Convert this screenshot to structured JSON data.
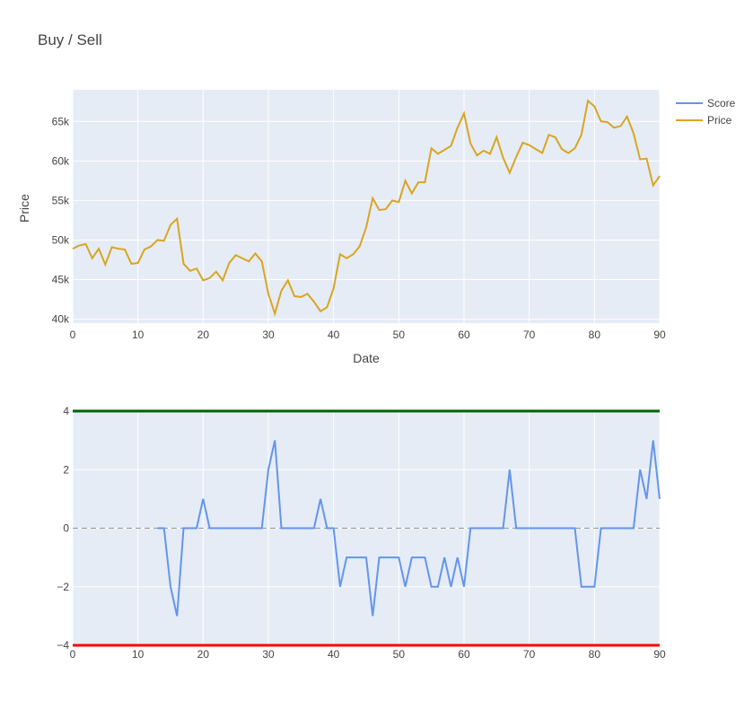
{
  "chart_data": {
    "type": "line",
    "title": "Buy / Sell",
    "legend": [
      "Score",
      "Price"
    ],
    "colors": {
      "score": "#6495ED",
      "price": "#DAA520",
      "plot_bg": "#E5ECF6",
      "grid": "#ffffff",
      "upper": "#006400",
      "lower": "#FF0000",
      "zero": "#999999"
    },
    "price_panel": {
      "xlabel": "Date",
      "ylabel": "Price",
      "xlim": [
        0,
        90
      ],
      "ylim": [
        39500,
        69000
      ],
      "xticks": [
        0,
        10,
        20,
        30,
        40,
        50,
        60,
        70,
        80,
        90
      ],
      "yticks": [
        40000,
        45000,
        50000,
        55000,
        60000,
        65000
      ],
      "ytick_labels": [
        "40k",
        "45k",
        "50k",
        "55k",
        "60k",
        "65k"
      ],
      "series": {
        "name": "Price",
        "values": [
          48900,
          49300,
          49500,
          47700,
          48900,
          46900,
          49100,
          48900,
          48800,
          47000,
          47100,
          48800,
          49200,
          50000,
          49900,
          51900,
          52700,
          47000,
          46100,
          46400,
          44900,
          45200,
          46000,
          44900,
          47100,
          48100,
          47700,
          47300,
          48300,
          47300,
          43200,
          40700,
          43600,
          44900,
          42900,
          42800,
          43200,
          42200,
          41000,
          41500,
          43900,
          48200,
          47700,
          48200,
          49200,
          51600,
          55300,
          53800,
          53900,
          55000,
          54800,
          57500,
          55900,
          57300,
          57300,
          61600,
          60900,
          61400,
          61900,
          64200,
          66000,
          62200,
          60700,
          61300,
          60900,
          63000,
          60400,
          58500,
          60500,
          62300,
          62000,
          61500,
          61000,
          63300,
          63000,
          61500,
          61000,
          61600,
          63300,
          67600,
          66900,
          65000,
          64900,
          64200,
          64400,
          65600,
          63500,
          60200,
          60300,
          56900,
          58100
        ]
      }
    },
    "score_panel": {
      "xlim": [
        0,
        90
      ],
      "ylim": [
        -4,
        4
      ],
      "xticks": [
        0,
        10,
        20,
        30,
        40,
        50,
        60,
        70,
        80,
        90
      ],
      "yticks": [
        -4,
        -2,
        0,
        2,
        4
      ],
      "ytick_labels": [
        "−4",
        "−2",
        "0",
        "2",
        "4"
      ],
      "upper_threshold": 4,
      "lower_threshold": -4,
      "series": {
        "name": "Score",
        "start_x": 13,
        "values": [
          0,
          0,
          -2,
          -3,
          0,
          0,
          0,
          1,
          0,
          0,
          0,
          0,
          0,
          0,
          0,
          0,
          0,
          2,
          3,
          0,
          0,
          0,
          0,
          0,
          0,
          1,
          0,
          0,
          -2,
          -1,
          -1,
          -1,
          -1,
          -3,
          -1,
          -1,
          -1,
          -1,
          -2,
          -1,
          -1,
          -1,
          -2,
          -2,
          -1,
          -2,
          -1,
          -2,
          0,
          0,
          0,
          0,
          0,
          0,
          2,
          0,
          0,
          0,
          0,
          0,
          0,
          0,
          0,
          0,
          0,
          -2,
          -2,
          -2,
          0,
          0,
          0,
          0,
          0,
          0,
          2,
          1,
          3,
          1
        ]
      }
    }
  }
}
